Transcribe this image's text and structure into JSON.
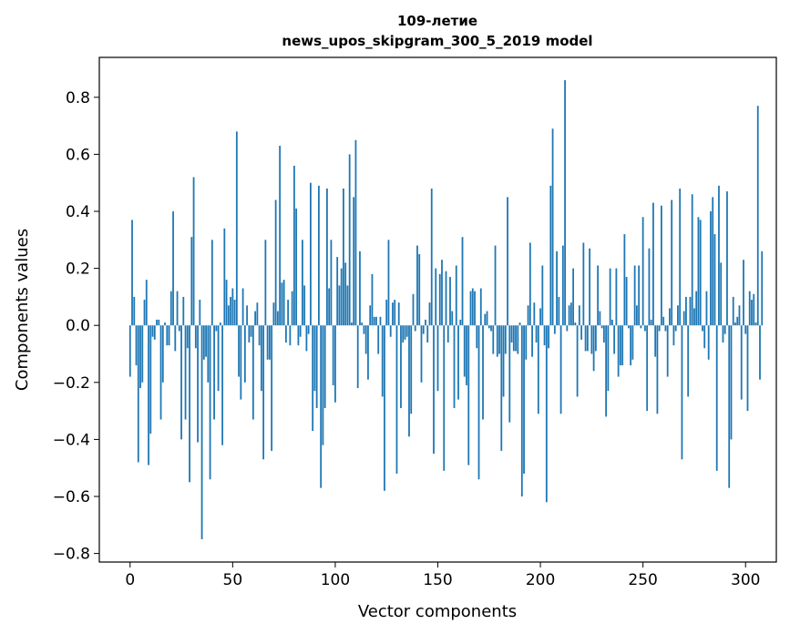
{
  "chart_data": {
    "type": "bar",
    "title": "109-летие",
    "subtitle": "news_upos_skipgram_300_5_2019 model",
    "xlabel": "Vector components",
    "ylabel": "Components values",
    "xlim": [
      -15,
      315
    ],
    "ylim": [
      -0.83,
      0.94
    ],
    "xticks": [
      0,
      50,
      100,
      150,
      200,
      250,
      300
    ],
    "xtick_labels": [
      "0",
      "50",
      "100",
      "150",
      "200",
      "250",
      "300"
    ],
    "yticks": [
      -0.8,
      -0.6,
      -0.4,
      -0.2,
      0.0,
      0.2,
      0.4,
      0.6,
      0.8
    ],
    "ytick_labels": [
      "−0.8",
      "−0.6",
      "−0.4",
      "−0.2",
      "0.0",
      "0.2",
      "0.4",
      "0.6",
      "0.8"
    ],
    "grid": false,
    "bar_color": "#1f77b4",
    "values": [
      -0.18,
      0.37,
      0.1,
      -0.14,
      -0.48,
      -0.22,
      -0.2,
      0.09,
      0.16,
      -0.49,
      -0.38,
      -0.04,
      -0.05,
      0.02,
      0.02,
      -0.33,
      -0.2,
      0.01,
      -0.07,
      -0.07,
      0.12,
      0.4,
      -0.09,
      0.12,
      -0.02,
      -0.4,
      0.1,
      -0.33,
      -0.08,
      -0.55,
      0.31,
      0.52,
      -0.08,
      -0.41,
      0.09,
      -0.75,
      -0.12,
      -0.11,
      -0.2,
      -0.54,
      0.3,
      -0.33,
      -0.02,
      -0.23,
      0.01,
      -0.42,
      0.34,
      0.16,
      0.07,
      0.1,
      0.13,
      0.09,
      0.68,
      -0.18,
      -0.26,
      0.13,
      -0.2,
      0.07,
      -0.06,
      -0.04,
      -0.33,
      0.05,
      0.08,
      -0.07,
      -0.23,
      -0.47,
      0.3,
      -0.12,
      -0.12,
      -0.44,
      0.08,
      0.44,
      0.05,
      0.63,
      0.15,
      0.16,
      -0.06,
      0.09,
      -0.07,
      0.12,
      0.56,
      0.41,
      -0.07,
      -0.04,
      0.3,
      0.14,
      -0.09,
      -0.03,
      0.5,
      -0.37,
      -0.23,
      -0.29,
      0.49,
      -0.57,
      -0.42,
      -0.29,
      0.48,
      0.13,
      0.3,
      -0.21,
      -0.27,
      0.24,
      0.14,
      0.2,
      0.48,
      0.22,
      0.14,
      0.6,
      0.01,
      0.45,
      0.65,
      -0.22,
      0.26,
      0.01,
      -0.03,
      -0.1,
      -0.19,
      0.07,
      0.18,
      0.03,
      0.03,
      -0.1,
      0.03,
      -0.25,
      -0.58,
      0.09,
      0.3,
      -0.04,
      0.08,
      0.09,
      -0.52,
      0.08,
      -0.29,
      -0.06,
      -0.05,
      -0.04,
      -0.39,
      -0.31,
      0.11,
      -0.02,
      0.28,
      0.25,
      -0.2,
      -0.03,
      0.02,
      -0.06,
      0.08,
      0.48,
      -0.45,
      0.2,
      -0.23,
      0.18,
      0.23,
      -0.51,
      0.19,
      -0.06,
      0.17,
      0.05,
      -0.29,
      0.21,
      -0.26,
      0.02,
      0.31,
      -0.18,
      -0.21,
      -0.49,
      0.12,
      0.13,
      0.12,
      -0.08,
      -0.54,
      0.13,
      -0.33,
      0.04,
      0.05,
      -0.01,
      -0.02,
      -0.1,
      0.28,
      -0.11,
      -0.1,
      -0.44,
      -0.25,
      -0.1,
      0.45,
      -0.34,
      -0.06,
      -0.09,
      -0.09,
      -0.1,
      0.01,
      -0.6,
      -0.52,
      -0.12,
      0.07,
      0.29,
      -0.11,
      0.08,
      -0.06,
      -0.31,
      0.06,
      0.21,
      -0.07,
      -0.62,
      -0.08,
      0.49,
      0.69,
      -0.03,
      0.26,
      0.1,
      -0.31,
      0.28,
      0.86,
      -0.02,
      0.07,
      0.08,
      0.2,
      0.01,
      -0.25,
      0.07,
      -0.05,
      0.29,
      -0.09,
      -0.09,
      0.27,
      -0.1,
      -0.16,
      -0.09,
      0.21,
      0.05,
      -0.01,
      -0.06,
      -0.32,
      -0.23,
      0.2,
      0.02,
      -0.1,
      0.2,
      -0.18,
      -0.14,
      -0.14,
      0.32,
      0.17,
      -0.01,
      -0.14,
      -0.12,
      0.21,
      0.07,
      0.21,
      -0.01,
      0.38,
      -0.02,
      -0.3,
      0.27,
      0.02,
      0.43,
      -0.11,
      -0.31,
      -0.02,
      0.42,
      0.03,
      -0.02,
      -0.18,
      0.06,
      0.44,
      -0.07,
      -0.02,
      0.07,
      0.48,
      -0.47,
      0.05,
      0.1,
      -0.25,
      0.1,
      0.46,
      0.06,
      0.12,
      0.38,
      0.37,
      -0.02,
      -0.08,
      0.12,
      -0.12,
      0.4,
      0.45,
      0.32,
      -0.51,
      0.49,
      0.22,
      -0.06,
      -0.03,
      0.47,
      -0.57,
      -0.4,
      0.1,
      0.01,
      0.03,
      0.07,
      -0.26,
      0.23,
      -0.03,
      -0.3,
      0.12,
      0.09,
      0.11,
      0.01,
      0.77,
      -0.19,
      0.26
    ]
  }
}
